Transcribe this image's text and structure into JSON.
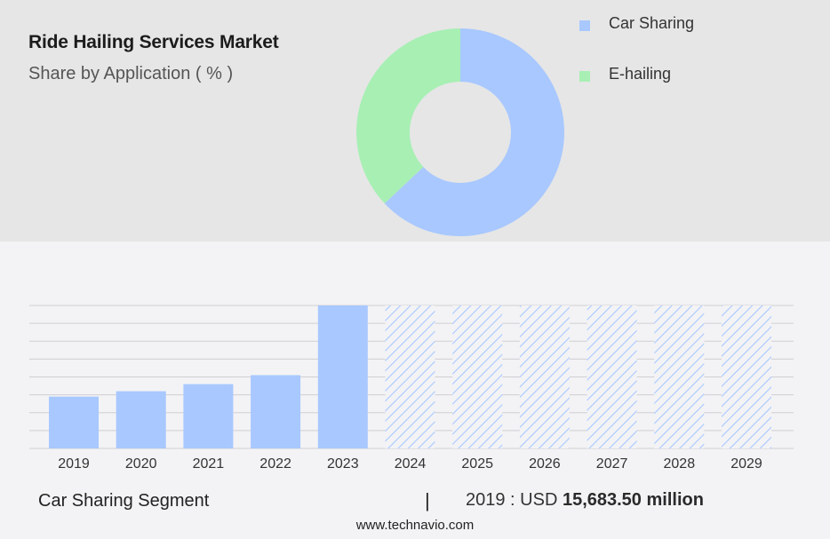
{
  "header": {
    "title": "Ride Hailing Services Market",
    "subtitle": "Share by Application ( % )"
  },
  "legend": [
    {
      "label": "Car Sharing",
      "color": "#a8c8ff"
    },
    {
      "label": "E-hailing",
      "color": "#a8efb4"
    }
  ],
  "footer": {
    "segment": "Car Sharing Segment",
    "separator": "|",
    "value_prefix": "2019 : USD",
    "value_amount": "15,683.50 million",
    "source": "www.technavio.com"
  },
  "chart_data": [
    {
      "type": "pie",
      "donut": true,
      "title": "Share by Application ( % )",
      "series": [
        {
          "name": "Car Sharing",
          "value": 63,
          "color": "#a8c8ff"
        },
        {
          "name": "E-hailing",
          "value": 37,
          "color": "#a8efb4"
        }
      ]
    },
    {
      "type": "bar",
      "categories": [
        "2019",
        "2020",
        "2021",
        "2022",
        "2023",
        "2024",
        "2025",
        "2026",
        "2027",
        "2028",
        "2029"
      ],
      "values": [
        29,
        32,
        36,
        41,
        80,
        80,
        80,
        80,
        80,
        80,
        80
      ],
      "forecast": [
        false,
        false,
        false,
        false,
        false,
        true,
        true,
        true,
        true,
        true,
        true
      ],
      "ylim": [
        0,
        80
      ],
      "grid": true,
      "bar_color": "#a8c8ff",
      "forecast_hatch_color": "#a8c8ff"
    }
  ]
}
